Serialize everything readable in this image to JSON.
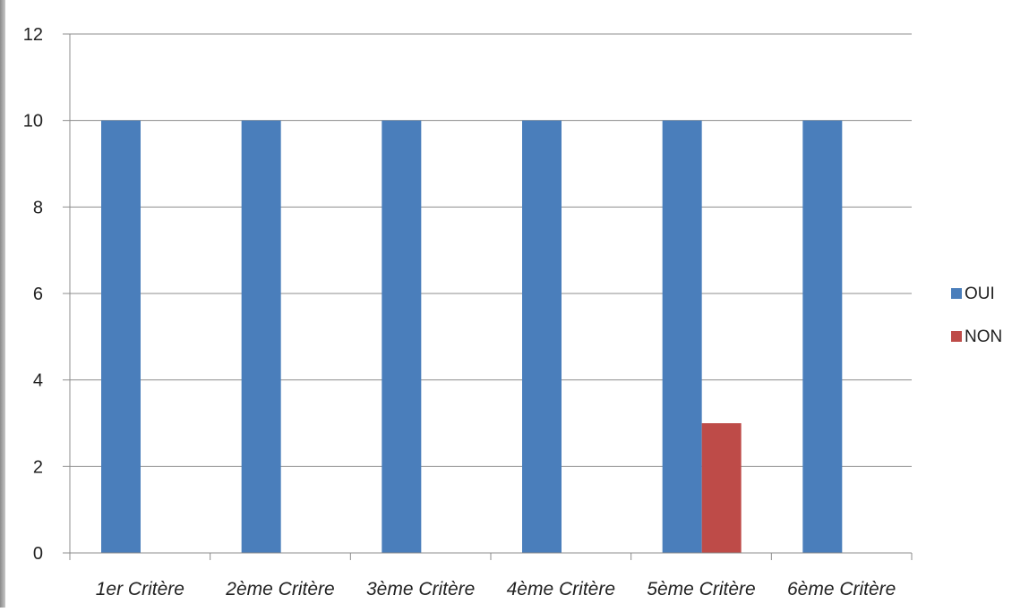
{
  "chart_data": {
    "type": "bar",
    "categories": [
      "1er Critère",
      "2ème Critère",
      "3ème Critère",
      "4ème Critère",
      "5ème Critère",
      "6ème Critère"
    ],
    "series": [
      {
        "name": "OUI",
        "color": "#4a7ebb",
        "values": [
          10,
          10,
          10,
          10,
          10,
          10
        ]
      },
      {
        "name": "NON",
        "color": "#be4b48",
        "values": [
          0,
          0,
          0,
          0,
          3,
          0
        ]
      }
    ],
    "yticks": [
      "0",
      "2",
      "4",
      "6",
      "8",
      "10",
      "12"
    ],
    "ylim": [
      0,
      12
    ],
    "grid": true,
    "legend_position": "right"
  }
}
